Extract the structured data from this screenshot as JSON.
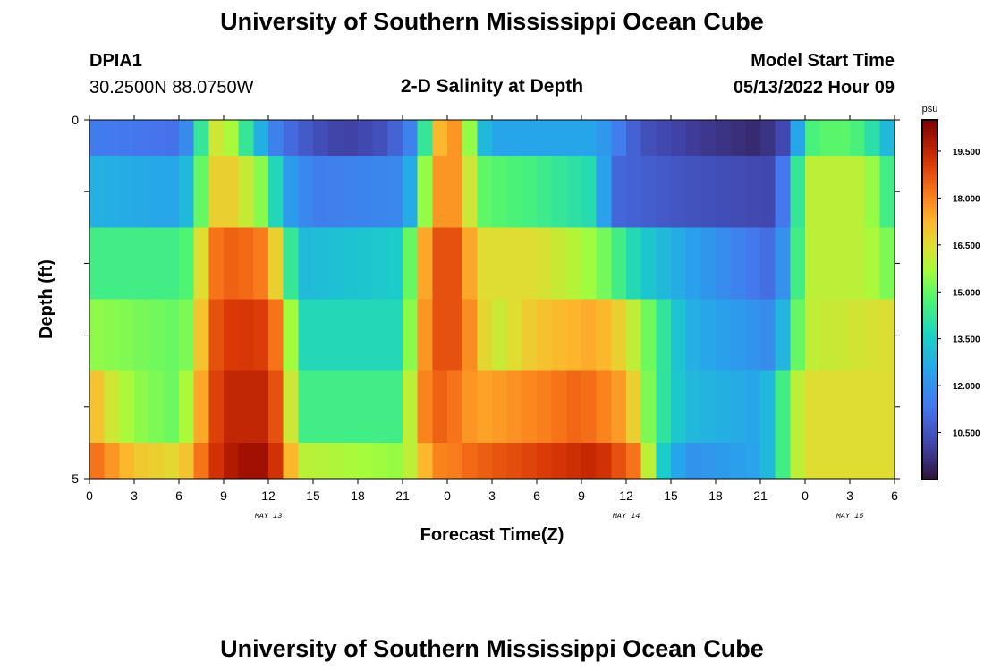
{
  "page": {
    "title": "University of Southern Mississippi Ocean Cube",
    "station": "DPIA1",
    "location": "30.2500N  88.0750W",
    "plot_title": "2-D Salinity at Depth",
    "model_start_label": "Model Start Time",
    "model_start_value": "05/13/2022 Hour 09",
    "footer_title": "University of Southern Mississippi Ocean Cube"
  },
  "colors": {
    "frame": "#000000",
    "background": "#ffffff"
  },
  "chart_data": {
    "type": "heatmap",
    "xlabel": "Forecast Time(Z)",
    "ylabel": "Depth (ft)",
    "x_hours_range": [
      0,
      54
    ],
    "ylim": [
      0,
      5
    ],
    "y_ticks": [
      "0",
      "5"
    ],
    "x_tick_labels": [
      "0",
      "3",
      "6",
      "9",
      "12",
      "15",
      "18",
      "21",
      "0",
      "3",
      "6",
      "9",
      "12",
      "15",
      "18",
      "21",
      "0",
      "3",
      "6"
    ],
    "date_labels": [
      {
        "text": "MAY 13",
        "hour": 12
      },
      {
        "text": "MAY 14",
        "hour": 36
      },
      {
        "text": "MAY 15",
        "hour": 51
      }
    ],
    "colorbar": {
      "unit": "psu",
      "min": 9.0,
      "max": 20.5,
      "ticks": [
        "19.500",
        "18.000",
        "16.500",
        "15.000",
        "13.500",
        "12.000",
        "10.500"
      ],
      "tick_values": [
        19.5,
        18.0,
        16.5,
        15.0,
        13.5,
        12.0,
        10.5
      ]
    },
    "depth_layers": [
      {
        "depth_range": [
          0,
          0.5
        ],
        "hours": [
          0,
          6,
          7,
          8,
          9,
          10,
          12,
          13,
          15,
          17,
          20,
          22,
          23,
          24,
          25,
          26,
          27,
          30,
          34,
          37,
          40,
          45,
          47,
          48,
          50,
          52,
          54
        ],
        "values": [
          11.5,
          11.2,
          12.5,
          16.0,
          16.5,
          15.0,
          12.0,
          11.2,
          10.5,
          10.0,
          10.5,
          12.0,
          16.5,
          18.0,
          17.5,
          13.5,
          12.5,
          12.5,
          12.5,
          10.5,
          10.0,
          9.5,
          10.5,
          14.5,
          15.0,
          14.5,
          12.5
        ]
      },
      {
        "depth_range": [
          0.5,
          1.5
        ],
        "hours": [
          0,
          6,
          7,
          8,
          9,
          10,
          12,
          13,
          15,
          21,
          22,
          23,
          24,
          25,
          26,
          30,
          34,
          35,
          40,
          46,
          47,
          48,
          52,
          54
        ],
        "values": [
          12.8,
          12.5,
          13.5,
          16.5,
          17.0,
          16.5,
          15.0,
          12.5,
          11.5,
          11.8,
          13.5,
          17.5,
          18.0,
          17.5,
          15.0,
          14.5,
          13.8,
          11.0,
          10.5,
          10.2,
          12.5,
          16.0,
          16.0,
          14.0
        ]
      },
      {
        "depth_range": [
          1.5,
          2.5
        ],
        "hours": [
          0,
          6,
          7,
          8,
          9,
          10,
          12,
          13,
          14,
          21,
          22,
          23,
          24,
          25,
          26,
          30,
          34,
          37,
          40,
          46,
          47,
          48,
          52,
          54
        ],
        "values": [
          14.5,
          14.5,
          15.0,
          18.0,
          18.5,
          18.5,
          18.0,
          15.5,
          13.0,
          13.5,
          16.5,
          18.5,
          19.0,
          18.5,
          16.5,
          16.5,
          15.5,
          13.5,
          12.5,
          11.0,
          13.0,
          16.0,
          16.0,
          15.0
        ]
      },
      {
        "depth_range": [
          2.5,
          3.5
        ],
        "hours": [
          0,
          6,
          7,
          8,
          9,
          10,
          12,
          13,
          14,
          21,
          22,
          23,
          24,
          25,
          27,
          30,
          34,
          36,
          40,
          46,
          47,
          48,
          54
        ],
        "values": [
          15.5,
          15.0,
          15.5,
          18.5,
          19.0,
          19.2,
          19.0,
          17.5,
          13.8,
          13.8,
          17.0,
          18.5,
          19.0,
          18.5,
          16.0,
          17.0,
          17.5,
          16.5,
          12.8,
          11.8,
          14.0,
          16.0,
          16.5
        ]
      },
      {
        "depth_range": [
          3.5,
          4.5
        ],
        "hours": [
          0,
          1,
          3,
          6,
          7,
          8,
          9,
          12,
          13,
          14,
          21,
          22,
          23,
          24,
          26,
          30,
          33,
          36,
          38,
          40,
          45,
          46,
          47,
          48,
          54
        ],
        "values": [
          17.5,
          16.5,
          15.5,
          15.0,
          16.5,
          18.5,
          19.5,
          19.5,
          18.0,
          14.5,
          14.5,
          17.5,
          18.5,
          18.5,
          17.5,
          18.0,
          18.5,
          17.5,
          14.5,
          13.0,
          12.5,
          13.5,
          15.5,
          16.5,
          16.5
        ]
      },
      {
        "depth_range": [
          4.5,
          5.0
        ],
        "hours": [
          0,
          1,
          3,
          6,
          7,
          8,
          10,
          12,
          13,
          14,
          21,
          22,
          23,
          24,
          26,
          30,
          34,
          37,
          38,
          40,
          45,
          46,
          47,
          48,
          54
        ],
        "values": [
          18.5,
          18.0,
          17.0,
          16.5,
          17.5,
          19.0,
          20.0,
          20.0,
          18.5,
          16.0,
          15.5,
          16.5,
          18.0,
          18.0,
          18.5,
          19.0,
          19.5,
          18.0,
          14.0,
          12.0,
          12.5,
          13.5,
          15.5,
          16.5,
          16.5
        ]
      }
    ]
  }
}
